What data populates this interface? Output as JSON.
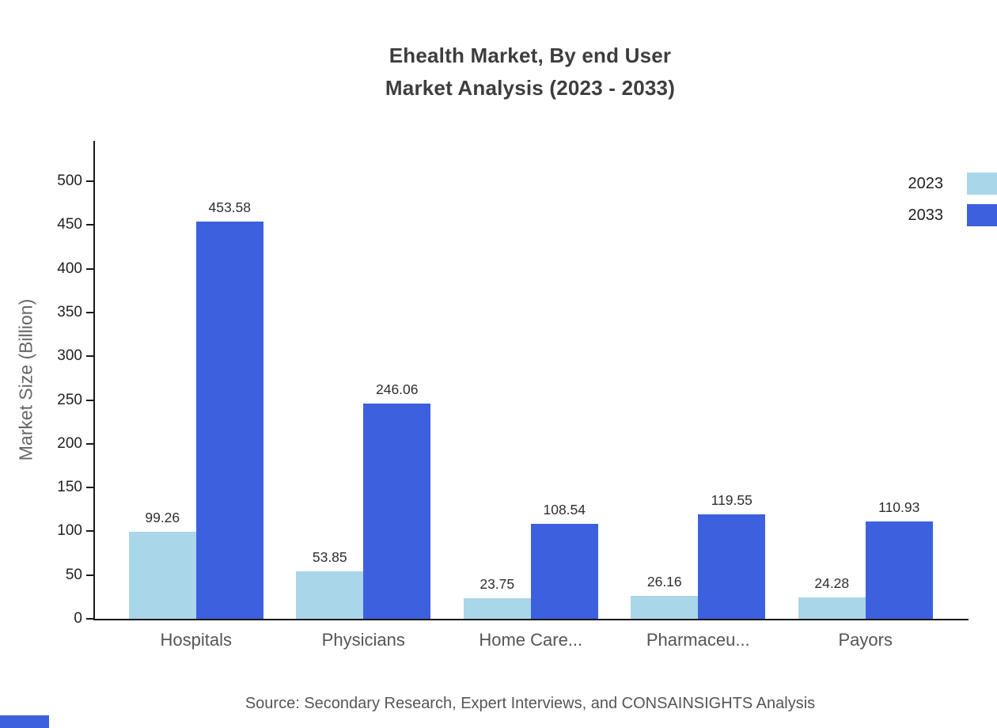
{
  "title": {
    "line1": "Ehealth Market, By end User",
    "line2": "Market Analysis (2023 - 2033)"
  },
  "ylabel": "Market Size (Billion)",
  "source": "Source: Secondary Research, Expert Interviews, and CONSAINSIGHTS Analysis",
  "legend": [
    {
      "label": "2023",
      "color": "#a9d6e8"
    },
    {
      "label": "2033",
      "color": "#3d60de"
    }
  ],
  "colors": {
    "series_2023": "#a9d6e8",
    "series_2033": "#3d60de",
    "axis": "#1a1a1a",
    "title_text": "#3d3d3d",
    "corner_accent": "#3d60de"
  },
  "chart_data": {
    "type": "bar",
    "title": "Ehealth Market, By end User Market Analysis (2023 - 2033)",
    "xlabel": "",
    "ylabel": "Market Size (Billion)",
    "categories": [
      "Hospitals",
      "Physicians",
      "Home Care...",
      "Pharmaceu...",
      "Payors"
    ],
    "series": [
      {
        "name": "2023",
        "color": "#a9d6e8",
        "values": [
          99.26,
          53.85,
          23.75,
          26.16,
          24.28
        ]
      },
      {
        "name": "2033",
        "color": "#3d60de",
        "values": [
          453.58,
          246.06,
          108.54,
          119.55,
          110.93
        ]
      }
    ],
    "ylim": [
      0,
      500
    ],
    "yticks": [
      0,
      50,
      100,
      150,
      200,
      250,
      300,
      350,
      400,
      450,
      500
    ],
    "grid": false,
    "legend_position": "top-right",
    "value_labels": true
  }
}
